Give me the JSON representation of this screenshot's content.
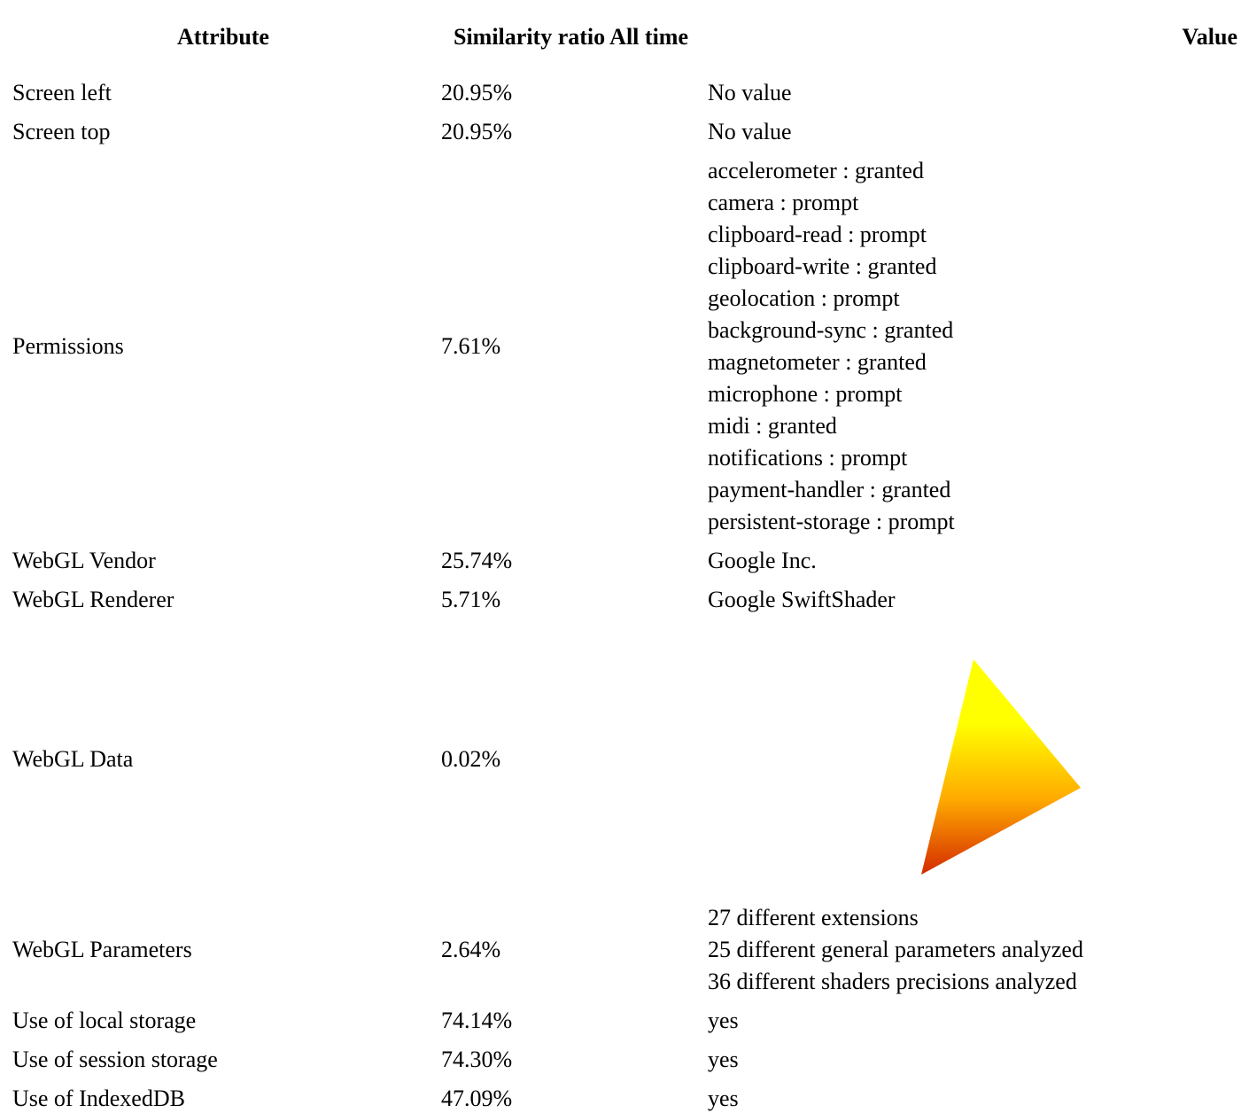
{
  "table": {
    "header": [
      "Attribute",
      "Similarity ratio All time",
      "Value"
    ],
    "rows": [
      {
        "attribute": "Screen left",
        "ratio": "20.95%",
        "value": "No value"
      },
      {
        "attribute": "Screen top",
        "ratio": "20.95%",
        "value": "No value"
      },
      {
        "attribute": "Permissions",
        "ratio": "7.61%",
        "value": [
          "accelerometer : granted",
          "camera : prompt",
          "clipboard-read : prompt",
          "clipboard-write : granted",
          "geolocation : prompt",
          "background-sync : granted",
          "magnetometer : granted",
          "microphone : prompt",
          "midi : granted",
          "notifications : prompt",
          "payment-handler : granted",
          "persistent-storage : prompt"
        ]
      },
      {
        "attribute": "WebGL Vendor",
        "ratio": "25.74%",
        "value": "Google Inc."
      },
      {
        "attribute": "WebGL Renderer",
        "ratio": "5.71%",
        "value": "Google SwiftShader"
      },
      {
        "attribute": "WebGL Data",
        "ratio": "0.02%"
      },
      {
        "attribute": "WebGL Parameters",
        "ratio": "2.64%",
        "value": [
          "27 different extensions",
          "25 different general parameters analyzed",
          "36 different shaders precisions analyzed"
        ]
      },
      {
        "attribute": "Use of local storage",
        "ratio": "74.14%",
        "value": "yes"
      },
      {
        "attribute": "Use of session storage",
        "ratio": "74.30%",
        "value": "yes"
      },
      {
        "attribute": "Use of IndexedDB",
        "ratio": "47.09%",
        "value": "yes"
      }
    ]
  }
}
